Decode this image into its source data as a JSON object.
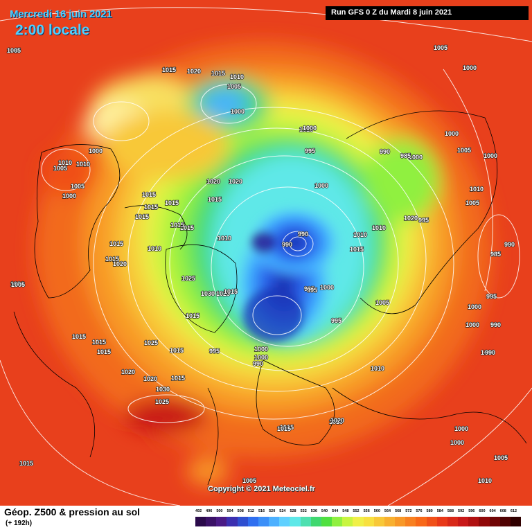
{
  "header": {
    "date": "Mercredi 16 juin 2021",
    "time": "2:00 locale",
    "run": "Run GFS 0 Z du Mardi 8 juin 2021"
  },
  "map": {
    "credit": "Copyright © 2021 Meteociel.fr",
    "pressure_labels": [
      "1010",
      "1025",
      "1020",
      "1015",
      "1010",
      "1005",
      "1005",
      "1005",
      "1000",
      "1010",
      "1010",
      "1000",
      "995",
      "1000",
      "990",
      "990",
      "1000",
      "1000",
      "1005",
      "1000",
      "1000",
      "1005",
      "1000",
      "1005",
      "1020",
      "1020",
      "1015",
      "1010",
      "1015",
      "1015",
      "1015",
      "1015",
      "1010",
      "1015",
      "1015",
      "1010",
      "990",
      "985",
      "995",
      "1010",
      "1015",
      "990",
      "985",
      "1010",
      "1015",
      "1015",
      "1020",
      "1020",
      "1025",
      "1030",
      "1025",
      "1015",
      "995",
      "1000",
      "1005",
      "1000",
      "995",
      "1000",
      "990",
      "1000",
      "995",
      "990",
      "1000",
      "1010",
      "1015",
      "1015",
      "1015",
      "1025",
      "1020",
      "1020",
      "1030",
      "1025",
      "1015",
      "1005",
      "1010",
      "1015",
      "1000",
      "1005",
      "995",
      "1000",
      "1000",
      "990",
      "1000",
      "1010",
      "1005",
      "1015",
      "1020",
      "1015",
      "1010",
      "995",
      "1015",
      "1020",
      "1015",
      "1005",
      "1015"
    ]
  },
  "legend": {
    "title": "Géop. Z500 & pression au sol",
    "subtitle": "(+ 192h)",
    "scale_labels": [
      "492",
      "496",
      "500",
      "504",
      "508",
      "512",
      "516",
      "520",
      "524",
      "528",
      "532",
      "536",
      "540",
      "544",
      "548",
      "552",
      "556",
      "560",
      "564",
      "568",
      "572",
      "576",
      "580",
      "584",
      "588",
      "592",
      "596",
      "600",
      "604",
      "608",
      "612"
    ],
    "scale_colors": [
      "#2a0a4a",
      "#3a1166",
      "#4a1a85",
      "#3b2fb0",
      "#2e4fd0",
      "#2f6ff0",
      "#3b8ff8",
      "#4cb0ff",
      "#5fd0ff",
      "#5ee8e8",
      "#4ee0b0",
      "#40d870",
      "#50e040",
      "#90f040",
      "#c8f540",
      "#f0f048",
      "#f8e040",
      "#f8c838",
      "#f8b030",
      "#f89828",
      "#f88020",
      "#f86818",
      "#f05018",
      "#e83818",
      "#d82818",
      "#c81818",
      "#b01010",
      "#900808",
      "#700404",
      "#500202",
      "#300000"
    ],
    "colors": {
      "background_sea": "#e83b1c",
      "isobar": "#ffffff",
      "coast": "#000000"
    }
  }
}
